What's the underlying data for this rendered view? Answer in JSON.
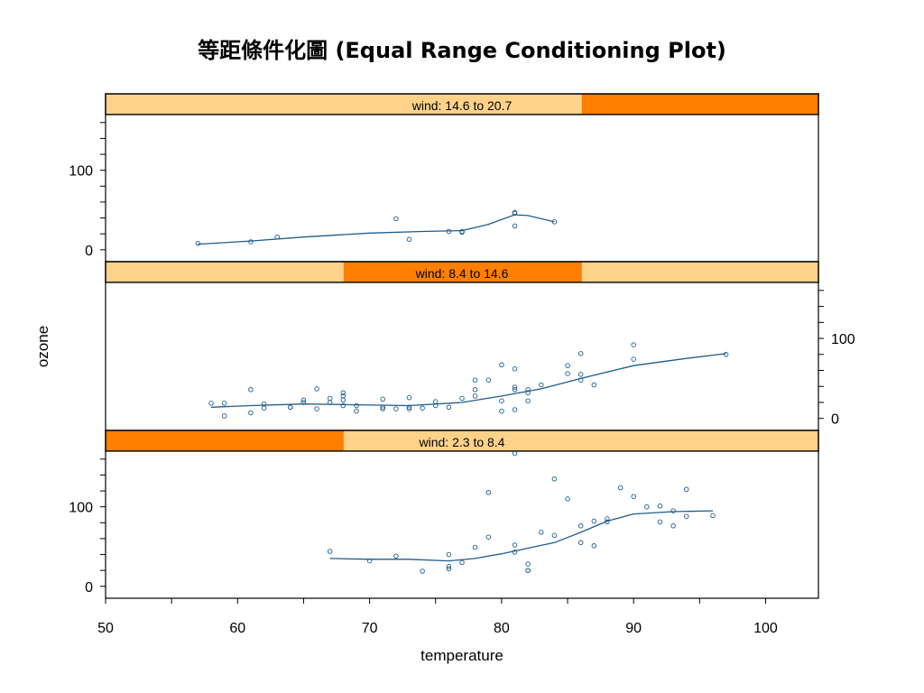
{
  "chart_data": {
    "type": "scatter",
    "title": "等距條件化圖 (Equal Range Conditioning Plot)",
    "xlabel": "temperature",
    "ylabel": "ozone",
    "xlim": [
      50,
      104
    ],
    "ylim": [
      -15,
      170
    ],
    "x_ticks": [
      50,
      60,
      70,
      80,
      90,
      100
    ],
    "y_ticks": [
      0,
      100
    ],
    "colors": {
      "points": "#1f5c8a",
      "smooth": "#1f5c8a",
      "strip_background": "#ffd28a",
      "strip_highlight": "#ff7f00",
      "frame": "#000000"
    },
    "panels": [
      {
        "strip_label": "wind: 14.6 to 20.7",
        "given_range": [
          14.6,
          20.7
        ],
        "highlight_fraction": [
          0.668,
          1.0
        ],
        "y_axis_side": "left",
        "points": [
          [
            57,
            8
          ],
          [
            61,
            10
          ],
          [
            63,
            16
          ],
          [
            72,
            39
          ],
          [
            73,
            13
          ],
          [
            76,
            23
          ],
          [
            77,
            23
          ],
          [
            77,
            22
          ],
          [
            81,
            47
          ],
          [
            81,
            46
          ],
          [
            81,
            30
          ],
          [
            84,
            35
          ]
        ],
        "smooth": [
          [
            57,
            7
          ],
          [
            61,
            11
          ],
          [
            65,
            16
          ],
          [
            70,
            21
          ],
          [
            74,
            23
          ],
          [
            77,
            24
          ],
          [
            79,
            32
          ],
          [
            81,
            44
          ],
          [
            82,
            43
          ],
          [
            84,
            35
          ]
        ]
      },
      {
        "strip_label": "wind: 8.4 to 14.6",
        "given_range": [
          8.4,
          14.6
        ],
        "highlight_fraction": [
          0.334,
          0.668
        ],
        "y_axis_side": "right",
        "points": [
          [
            58,
            19
          ],
          [
            59,
            19
          ],
          [
            59,
            3
          ],
          [
            61,
            36
          ],
          [
            61,
            7
          ],
          [
            62,
            18
          ],
          [
            62,
            13
          ],
          [
            64,
            14
          ],
          [
            64,
            14
          ],
          [
            65,
            23
          ],
          [
            65,
            20
          ],
          [
            66,
            37
          ],
          [
            66,
            12
          ],
          [
            67,
            20
          ],
          [
            67,
            25
          ],
          [
            68,
            32
          ],
          [
            68,
            28
          ],
          [
            68,
            23
          ],
          [
            68,
            16
          ],
          [
            69,
            16
          ],
          [
            69,
            9
          ],
          [
            71,
            24
          ],
          [
            71,
            12
          ],
          [
            71,
            14
          ],
          [
            72,
            12
          ],
          [
            73,
            12
          ],
          [
            73,
            14
          ],
          [
            73,
            26
          ],
          [
            74,
            13
          ],
          [
            75,
            21
          ],
          [
            75,
            16
          ],
          [
            76,
            14
          ],
          [
            77,
            25
          ],
          [
            78,
            48
          ],
          [
            78,
            28
          ],
          [
            78,
            36
          ],
          [
            79,
            48
          ],
          [
            80,
            67
          ],
          [
            80,
            9
          ],
          [
            80,
            22
          ],
          [
            81,
            62
          ],
          [
            81,
            39
          ],
          [
            81,
            36
          ],
          [
            81,
            11
          ],
          [
            82,
            32
          ],
          [
            82,
            36
          ],
          [
            82,
            22
          ],
          [
            83,
            42
          ],
          [
            85,
            56
          ],
          [
            85,
            66
          ],
          [
            86,
            81
          ],
          [
            86,
            55
          ],
          [
            86,
            48
          ],
          [
            87,
            42
          ],
          [
            90,
            92
          ],
          [
            90,
            74
          ],
          [
            97,
            80
          ]
        ],
        "smooth": [
          [
            58,
            14
          ],
          [
            61,
            16
          ],
          [
            65,
            18
          ],
          [
            69,
            17
          ],
          [
            73,
            16
          ],
          [
            77,
            20
          ],
          [
            80,
            28
          ],
          [
            83,
            37
          ],
          [
            86,
            50
          ],
          [
            90,
            66
          ],
          [
            94,
            75
          ],
          [
            97,
            81
          ]
        ]
      },
      {
        "strip_label": "wind: 2.3 to 8.4",
        "given_range": [
          2.3,
          8.4
        ],
        "highlight_fraction": [
          0.0,
          0.334
        ],
        "y_axis_side": "left",
        "points": [
          [
            67,
            44
          ],
          [
            70,
            32
          ],
          [
            72,
            38
          ],
          [
            74,
            19
          ],
          [
            76,
            40
          ],
          [
            76,
            25
          ],
          [
            76,
            22
          ],
          [
            77,
            30
          ],
          [
            78,
            49
          ],
          [
            79,
            118
          ],
          [
            79,
            62
          ],
          [
            81,
            167
          ],
          [
            81,
            52
          ],
          [
            81,
            43
          ],
          [
            82,
            28
          ],
          [
            82,
            20
          ],
          [
            82,
            20
          ],
          [
            83,
            68
          ],
          [
            84,
            135
          ],
          [
            84,
            64
          ],
          [
            85,
            110
          ],
          [
            86,
            55
          ],
          [
            86,
            76
          ],
          [
            87,
            51
          ],
          [
            87,
            82
          ],
          [
            88,
            85
          ],
          [
            88,
            81
          ],
          [
            89,
            124
          ],
          [
            90,
            113
          ],
          [
            91,
            100
          ],
          [
            92,
            101
          ],
          [
            92,
            81
          ],
          [
            93,
            95
          ],
          [
            93,
            76
          ],
          [
            94,
            122
          ],
          [
            94,
            88
          ],
          [
            96,
            89
          ]
        ],
        "smooth": [
          [
            67,
            35
          ],
          [
            70,
            34
          ],
          [
            73,
            34
          ],
          [
            76,
            32
          ],
          [
            78,
            35
          ],
          [
            80,
            41
          ],
          [
            82,
            48
          ],
          [
            84,
            55
          ],
          [
            86,
            68
          ],
          [
            88,
            82
          ],
          [
            90,
            91
          ],
          [
            93,
            94
          ],
          [
            96,
            95
          ]
        ]
      }
    ]
  }
}
